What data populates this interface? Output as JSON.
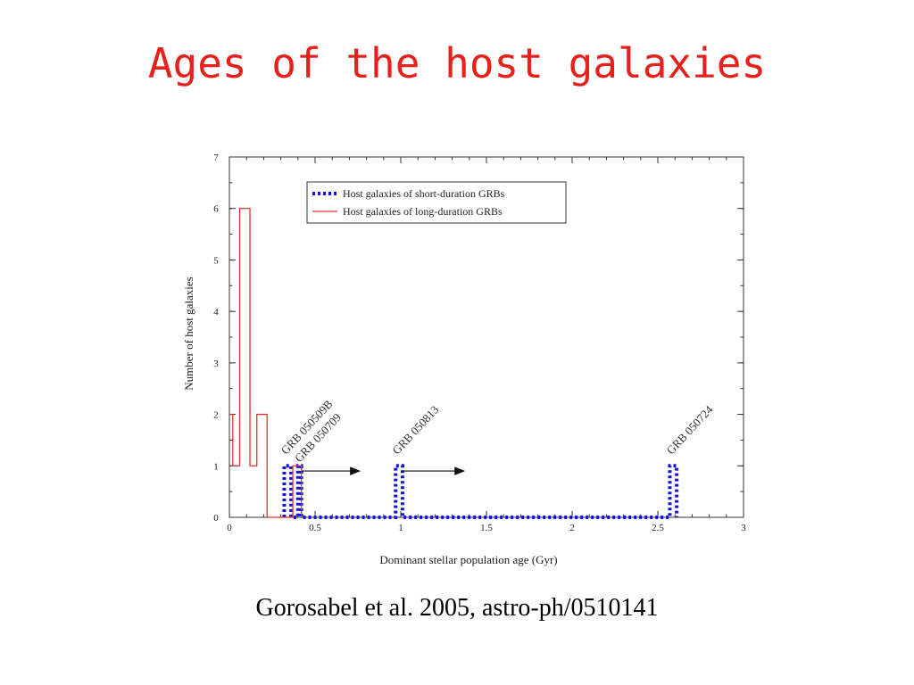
{
  "slide": {
    "title": "Ages of the host galaxies",
    "citation": "Gorosabel et al. 2005, astro-ph/0510141"
  },
  "colors": {
    "title": "#e8201c",
    "short_series": "#1414d4",
    "long_series": "#e03030"
  },
  "chart_data": {
    "type": "histogram",
    "xlabel": "Dominant stellar population age (Gyr)",
    "ylabel": "Number of host galaxies",
    "xlim": [
      0,
      3
    ],
    "ylim": [
      0,
      7
    ],
    "xticks": [
      0,
      0.5,
      1,
      1.5,
      2,
      2.5,
      3
    ],
    "xtick_labels": [
      "0",
      "0.5",
      "1",
      "1.5",
      "2",
      "2.5",
      "3"
    ],
    "yticks": [
      0,
      1,
      2,
      3,
      4,
      5,
      6,
      7
    ],
    "ytick_labels": [
      "0",
      "1",
      "2",
      "3",
      "4",
      "5",
      "6",
      "7"
    ],
    "grid": false,
    "legend_position": "top-center",
    "series": [
      {
        "name": "Host galaxies of short-duration GRBs",
        "style": "dotted",
        "step_x": [
          0.32,
          0.32,
          0.36,
          0.36,
          0.4,
          0.4,
          0.42,
          0.42,
          0.97,
          0.97,
          1.01,
          1.01,
          2.57,
          2.57,
          2.61,
          2.61
        ],
        "step_y": [
          0,
          1,
          1,
          0,
          0,
          1,
          1,
          0,
          0,
          1,
          1,
          0,
          0,
          1,
          1,
          0
        ]
      },
      {
        "name": "Host galaxies of long-duration GRBs",
        "style": "solid",
        "step_x": [
          0,
          0.02,
          0.02,
          0.06,
          0.06,
          0.12,
          0.12,
          0.16,
          0.16,
          0.22,
          0.22,
          0.37,
          0.37,
          0.42,
          0.42
        ],
        "step_y": [
          2,
          2,
          1,
          1,
          6,
          6,
          1,
          1,
          2,
          2,
          0,
          0,
          1,
          1,
          0
        ]
      }
    ],
    "annotations": [
      {
        "text": "GRB 050509B",
        "x": 0.33,
        "y": 1.0
      },
      {
        "text": "GRB 050709",
        "x": 0.41,
        "y": 0.85
      },
      {
        "text": "GRB 050813",
        "x": 0.98,
        "y": 1.0
      },
      {
        "text": "GRB 050724",
        "x": 2.58,
        "y": 1.0
      }
    ],
    "arrows": [
      {
        "from": [
          0.42,
          0.9
        ],
        "to": [
          0.76,
          0.9
        ]
      },
      {
        "from": [
          1.01,
          0.9
        ],
        "to": [
          1.37,
          0.9
        ]
      }
    ]
  }
}
